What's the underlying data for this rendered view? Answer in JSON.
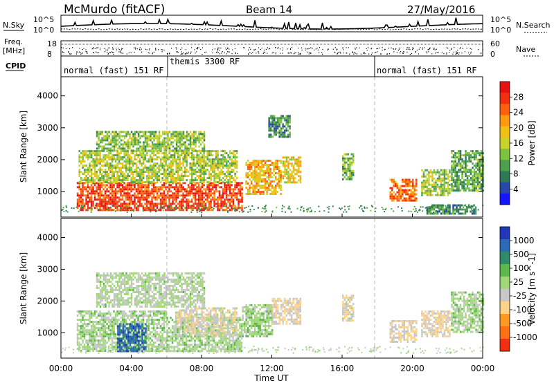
{
  "header": {
    "station": "McMurdo (fitACF)",
    "beam": "Beam 14",
    "date": "27/May/2016"
  },
  "noise_panel": {
    "left_label": "N.Sky",
    "right_label": "N.Search",
    "left_ticks": [
      "10^5",
      "10^0"
    ],
    "right_ticks": [
      "10^5",
      "10^0"
    ]
  },
  "freq_panel": {
    "left_label_1": "Freq.",
    "left_label_2": "[MHz]",
    "right_label": "Nave",
    "left_ticks": [
      "18",
      "8"
    ],
    "right_ticks": [
      "60",
      "0"
    ]
  },
  "cpid": {
    "label": "CPID",
    "segments": [
      {
        "text": "normal (fast) 151 RF",
        "start_hour": 0
      },
      {
        "text": "themis 3300 RF",
        "start_hour": 6
      },
      {
        "text": "normal (fast) 151 RF",
        "start_hour": 18
      }
    ]
  },
  "x_axis": {
    "label": "Time UT",
    "ticks": [
      "00:00",
      "04:00",
      "08:00",
      "12:00",
      "16:00",
      "20:00",
      "00:00"
    ]
  },
  "chart_data": [
    {
      "type": "heatmap",
      "title": "",
      "xlabel": "Time UT",
      "ylabel": "Slant Range [km]",
      "xlim_hours": [
        0,
        24
      ],
      "ylim": [
        200,
        4600
      ],
      "yticks": [
        "1000",
        "2000",
        "3000",
        "4000"
      ],
      "colorbar": {
        "label": "Power [dB]",
        "ticks": [
          "4",
          "8",
          "12",
          "16",
          "20",
          "24",
          "28"
        ],
        "colors": [
          "#1414ff",
          "#2848a8",
          "#2f7a55",
          "#4da04e",
          "#7cc240",
          "#c8d22a",
          "#f2c014",
          "#ff9a10",
          "#ff6010",
          "#f03010",
          "#e81010"
        ],
        "range": [
          0,
          32
        ]
      },
      "echo_regions": [
        {
          "t_start": 0.9,
          "t_end": 10.3,
          "r_start": 450,
          "r_end": 1300,
          "value": 27
        },
        {
          "t_start": 1.0,
          "t_end": 10.0,
          "r_start": 1300,
          "r_end": 2300,
          "value": 15
        },
        {
          "t_start": 2.0,
          "t_end": 8.2,
          "r_start": 2300,
          "r_end": 2900,
          "value": 13
        },
        {
          "t_start": 10.5,
          "t_end": 12.5,
          "r_start": 900,
          "r_end": 2000,
          "value": 20
        },
        {
          "t_start": 12.6,
          "t_end": 13.6,
          "r_start": 1300,
          "r_end": 2100,
          "value": 18
        },
        {
          "t_start": 11.8,
          "t_end": 13.0,
          "r_start": 2700,
          "r_end": 3400,
          "value": 9
        },
        {
          "t_start": 16.0,
          "t_end": 16.6,
          "r_start": 1400,
          "r_end": 2200,
          "value": 12
        },
        {
          "t_start": 18.7,
          "t_end": 20.2,
          "r_start": 700,
          "r_end": 1400,
          "value": 24
        },
        {
          "t_start": 20.5,
          "t_end": 22.1,
          "r_start": 900,
          "r_end": 1700,
          "value": 14
        },
        {
          "t_start": 22.2,
          "t_end": 24.0,
          "r_start": 1000,
          "r_end": 2300,
          "value": 11
        },
        {
          "t_start": 20.8,
          "t_end": 23.6,
          "r_start": 300,
          "r_end": 600,
          "value": 9
        }
      ]
    },
    {
      "type": "heatmap",
      "title": "",
      "xlabel": "Time UT",
      "ylabel": "Slant Range [km]",
      "xlim_hours": [
        0,
        24
      ],
      "ylim": [
        200,
        4600
      ],
      "yticks": [
        "1000",
        "2000",
        "3000",
        "4000"
      ],
      "colorbar": {
        "label": "Velocity [m s^-1]",
        "ticks": [
          "1000",
          "500",
          "100",
          "25",
          "-25",
          "-100",
          "-500",
          "-1000"
        ],
        "colors": [
          "#2038b8",
          "#2a6ab8",
          "#2e8a6a",
          "#5cb848",
          "#a0d878",
          "#c8c8c8",
          "#ffd48a",
          "#ff9a20",
          "#ff7010",
          "#f03010"
        ],
        "range": [
          -1000,
          1000
        ]
      },
      "echo_regions": [
        {
          "t_start": 0.9,
          "t_end": 6.0,
          "r_start": 450,
          "r_end": 1700,
          "value": 80
        },
        {
          "t_start": 3.2,
          "t_end": 4.8,
          "r_start": 450,
          "r_end": 1300,
          "value": 700
        },
        {
          "t_start": 6.0,
          "t_end": 10.3,
          "r_start": 450,
          "r_end": 1500,
          "value": 80
        },
        {
          "t_start": 6.5,
          "t_end": 10.0,
          "r_start": 900,
          "r_end": 1800,
          "value": -150
        },
        {
          "t_start": 2.0,
          "t_end": 8.2,
          "r_start": 1800,
          "r_end": 2900,
          "value": 15
        },
        {
          "t_start": 10.3,
          "t_end": 12.0,
          "r_start": 900,
          "r_end": 1900,
          "value": 90
        },
        {
          "t_start": 12.0,
          "t_end": 13.6,
          "r_start": 1300,
          "r_end": 2100,
          "value": -200
        },
        {
          "t_start": 16.0,
          "t_end": 16.6,
          "r_start": 1400,
          "r_end": 2200,
          "value": -150
        },
        {
          "t_start": 18.7,
          "t_end": 20.2,
          "r_start": 700,
          "r_end": 1400,
          "value": -200
        },
        {
          "t_start": 20.5,
          "t_end": 22.1,
          "r_start": 900,
          "r_end": 1700,
          "value": -200
        },
        {
          "t_start": 22.2,
          "t_end": 24.0,
          "r_start": 1000,
          "r_end": 2300,
          "value": 60
        }
      ]
    }
  ]
}
